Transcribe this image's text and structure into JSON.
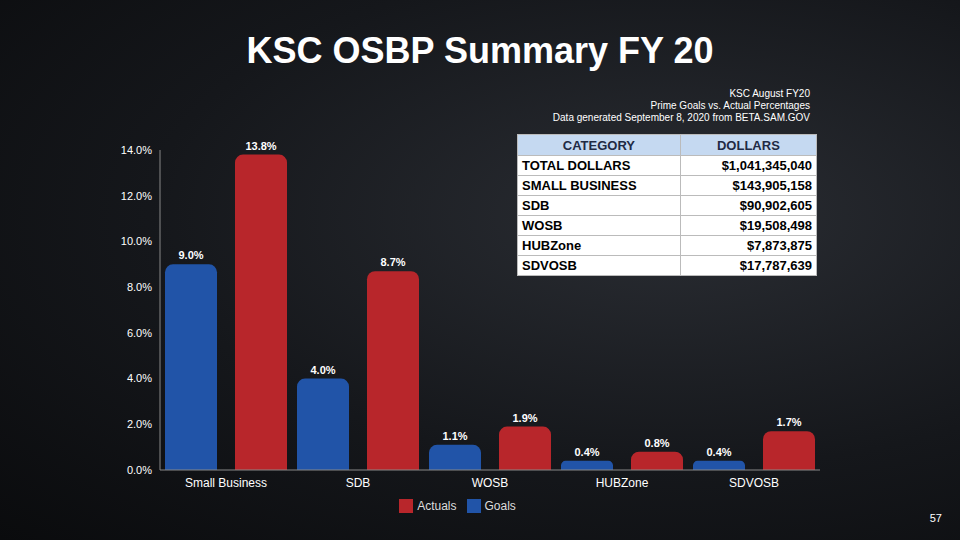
{
  "chart_data": {
    "type": "bar",
    "title": "KSC OSBP Summary FY 20",
    "annotations": [
      "KSC August FY20",
      "Prime Goals vs. Actual Percentages",
      "Data generated September 8, 2020 from BETA.SAM.GOV"
    ],
    "categories": [
      "Small Business",
      "SDB",
      "WOSB",
      "HUBZone",
      "SDVOSB"
    ],
    "series": [
      {
        "name": "Goals",
        "color": "#2154a8",
        "values": [
          9.0,
          4.0,
          1.1,
          0.4,
          0.4
        ],
        "value_labels": [
          "9.0%",
          "4.0%",
          "1.1%",
          "0.4%",
          "0.4%"
        ]
      },
      {
        "name": "Actuals",
        "color": "#b8262b",
        "values": [
          13.8,
          8.7,
          1.9,
          0.8,
          1.7
        ],
        "value_labels": [
          "13.8%",
          "8.7%",
          "1.9%",
          "0.8%",
          "1.7%"
        ]
      }
    ],
    "ylim": [
      0,
      14
    ],
    "yticks": [
      {
        "value": 0,
        "label": "0.0%"
      },
      {
        "value": 2,
        "label": "2.0%"
      },
      {
        "value": 4,
        "label": "4.0%"
      },
      {
        "value": 6,
        "label": "6.0%"
      },
      {
        "value": 8,
        "label": "8.0%"
      },
      {
        "value": 10,
        "label": "10.0%"
      },
      {
        "value": 12,
        "label": "12.0%"
      },
      {
        "value": 14,
        "label": "14.0%"
      }
    ],
    "grid": false,
    "legend": "bottom",
    "data_labels": true
  },
  "table": {
    "columns": [
      "CATEGORY",
      "DOLLARS"
    ],
    "rows": [
      [
        "TOTAL DOLLARS",
        "$1,041,345,040"
      ],
      [
        "SMALL BUSINESS",
        "$143,905,158"
      ],
      [
        "SDB",
        "$90,902,605"
      ],
      [
        "WOSB",
        "$19,508,498"
      ],
      [
        "HUBZone",
        "$7,873,875"
      ],
      [
        "SDVOSB",
        "$17,787,639"
      ]
    ]
  },
  "page_number": "57"
}
